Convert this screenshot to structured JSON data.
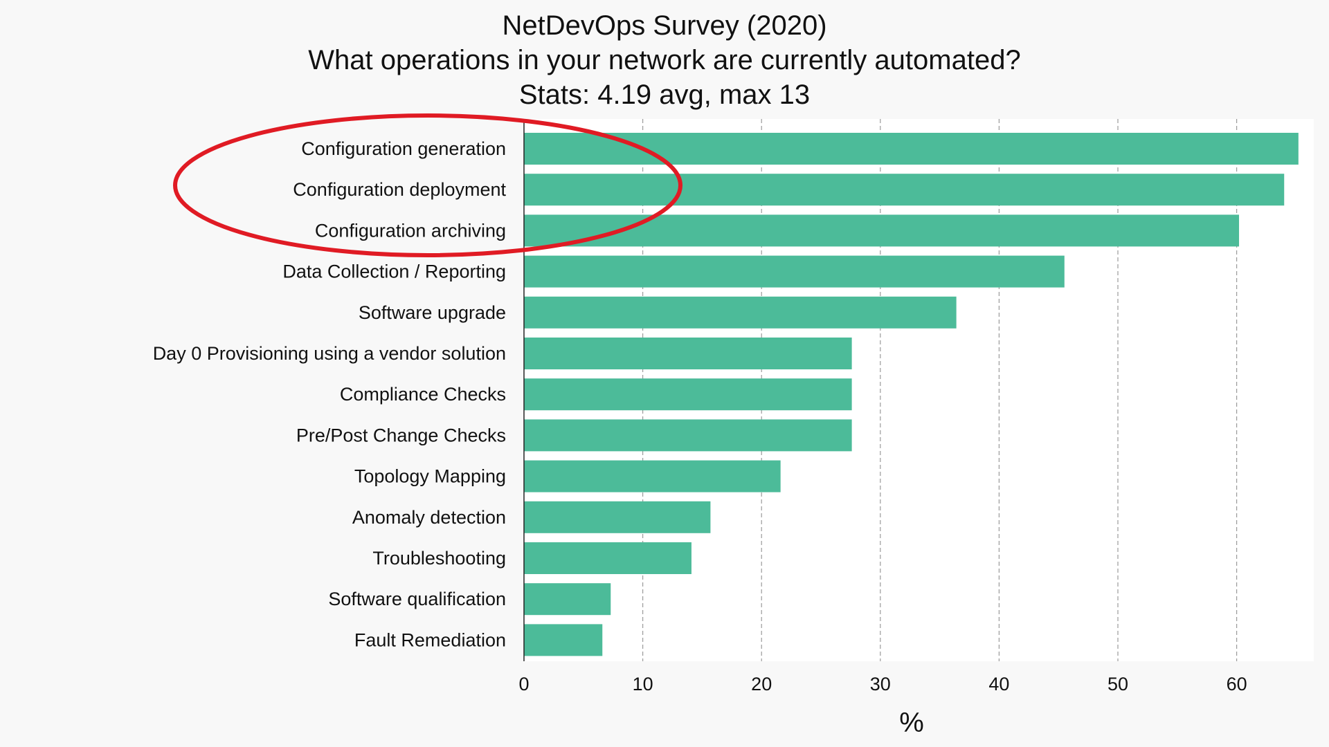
{
  "chart_data": {
    "type": "bar",
    "orientation": "horizontal",
    "title": [
      "NetDevOps Survey (2020)",
      "What operations in your network are currently automated?",
      "Stats: 4.19 avg, max 13"
    ],
    "xlabel": "%",
    "ylabel": "",
    "xlim": [
      0,
      66
    ],
    "xticks": [
      0,
      10,
      20,
      30,
      40,
      50,
      60
    ],
    "grid": "vertical dashed",
    "bar_color": "#4cbb99",
    "highlight_color": "#e01b24",
    "highlighted_categories": [
      "Configuration generation",
      "Configuration deployment",
      "Configuration archiving"
    ],
    "categories": [
      "Configuration generation",
      "Configuration deployment",
      "Configuration archiving",
      "Data Collection / Reporting",
      "Software upgrade",
      "Day 0 Provisioning using a vendor solution",
      "Compliance Checks",
      "Pre/Post Change Checks",
      "Topology Mapping",
      "Anomaly detection",
      "Troubleshooting",
      "Software qualification",
      "Fault Remediation"
    ],
    "values": [
      65.2,
      64.0,
      60.2,
      45.5,
      36.4,
      27.6,
      27.6,
      27.6,
      21.6,
      15.7,
      14.1,
      7.3,
      6.6
    ]
  }
}
